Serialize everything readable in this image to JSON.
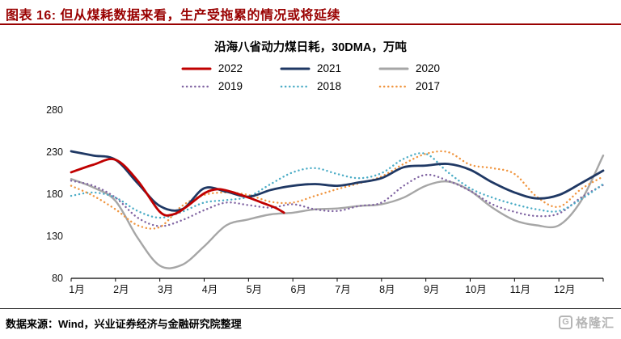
{
  "header": {
    "title": "图表 16: 但从煤耗数据来看，生产受拖累的情况或将延续"
  },
  "colors": {
    "header_red": "#990000",
    "axis_black": "#000000",
    "watermark_gray": "#b5b5b5"
  },
  "chart_data": {
    "type": "line",
    "title": "沿海八省动力煤日耗，30DMA，万吨",
    "xlabel": "",
    "ylabel": "",
    "x_categories": [
      "1月",
      "2月",
      "3月",
      "4月",
      "5月",
      "6月",
      "7月",
      "8月",
      "9月",
      "10月",
      "11月",
      "12月"
    ],
    "yticks": [
      80,
      130,
      180,
      230,
      280
    ],
    "ylim": [
      80,
      280
    ],
    "xlim": [
      1,
      13
    ],
    "grid": false,
    "legend_position": "top",
    "legend_rows": [
      [
        "2022",
        "2021",
        "2020"
      ],
      [
        "2019",
        "2018",
        "2017"
      ]
    ],
    "series": [
      {
        "name": "2020",
        "color": "#a6a6a6",
        "dash": "solid",
        "width": 2.4,
        "x": [
          1,
          1.5,
          2,
          2.5,
          3,
          3.5,
          4,
          4.5,
          5,
          5.5,
          6,
          6.5,
          7,
          7.5,
          8,
          8.5,
          9,
          9.5,
          10,
          10.5,
          11,
          11.5,
          12,
          12.5,
          13
        ],
        "y": [
          198,
          188,
          172,
          128,
          95,
          96,
          118,
          143,
          150,
          156,
          158,
          162,
          163,
          166,
          168,
          176,
          190,
          195,
          184,
          164,
          149,
          143,
          143,
          172,
          226
        ]
      },
      {
        "name": "2019",
        "color": "#8064a2",
        "dash": "dotted",
        "width": 2.4,
        "x": [
          1,
          1.5,
          2,
          2.5,
          3,
          3.5,
          4,
          4.5,
          5,
          5.5,
          6,
          6.5,
          7,
          7.5,
          8,
          8.5,
          9,
          9.5,
          10,
          10.5,
          11,
          11.5,
          12,
          12.5,
          13
        ],
        "y": [
          196,
          190,
          176,
          152,
          142,
          149,
          161,
          170,
          167,
          164,
          168,
          162,
          160,
          166,
          170,
          190,
          203,
          196,
          184,
          168,
          159,
          154,
          157,
          176,
          191
        ]
      },
      {
        "name": "2018",
        "color": "#4bacc6",
        "dash": "dotted",
        "width": 2.4,
        "x": [
          1,
          1.5,
          2,
          2.5,
          3,
          3.5,
          4,
          4.5,
          5,
          5.5,
          6,
          6.5,
          7,
          7.5,
          8,
          8.5,
          9,
          9.5,
          10,
          10.5,
          11,
          11.5,
          12,
          12.5,
          13
        ],
        "y": [
          178,
          182,
          176,
          160,
          152,
          159,
          170,
          173,
          177,
          192,
          206,
          211,
          204,
          199,
          205,
          222,
          228,
          206,
          187,
          176,
          168,
          162,
          160,
          174,
          192
        ]
      },
      {
        "name": "2017",
        "color": "#f0953f",
        "dash": "dotted",
        "width": 2.4,
        "x": [
          1,
          1.5,
          2,
          2.5,
          3,
          3.5,
          4,
          4.5,
          5,
          5.5,
          6,
          6.5,
          7,
          7.5,
          8,
          8.5,
          9,
          9.5,
          10,
          10.5,
          11,
          11.5,
          12,
          12.5,
          13
        ],
        "y": [
          190,
          178,
          162,
          143,
          141,
          166,
          179,
          182,
          179,
          171,
          170,
          178,
          186,
          193,
          201,
          216,
          228,
          230,
          215,
          211,
          204,
          177,
          165,
          186,
          201
        ]
      },
      {
        "name": "2021",
        "color": "#1f3864",
        "dash": "solid",
        "width": 2.8,
        "x": [
          1,
          1.5,
          2,
          2.5,
          3,
          3.5,
          4,
          4.5,
          5,
          5.5,
          6,
          6.5,
          7,
          7.5,
          8,
          8.5,
          9,
          9.5,
          10,
          10.5,
          11,
          11.5,
          12,
          12.5,
          13
        ],
        "y": [
          231,
          226,
          221,
          193,
          166,
          162,
          187,
          183,
          177,
          185,
          190,
          192,
          190,
          194,
          199,
          212,
          214,
          216,
          209,
          194,
          182,
          175,
          179,
          193,
          208
        ]
      },
      {
        "name": "2022",
        "color": "#c00000",
        "dash": "solid",
        "width": 2.8,
        "x": [
          1,
          1.5,
          2,
          2.5,
          3,
          3.3,
          3.6,
          4,
          4.3,
          4.6,
          5,
          5.3,
          5.6,
          5.8
        ],
        "y": [
          206,
          215,
          221,
          196,
          159,
          156,
          165,
          181,
          186,
          183,
          176,
          170,
          164,
          158
        ]
      }
    ]
  },
  "footer": {
    "source": "数据来源：Wind，兴业证券经济与金融研究院整理"
  },
  "watermark": {
    "logo_letter": "G",
    "text": "格隆汇"
  }
}
